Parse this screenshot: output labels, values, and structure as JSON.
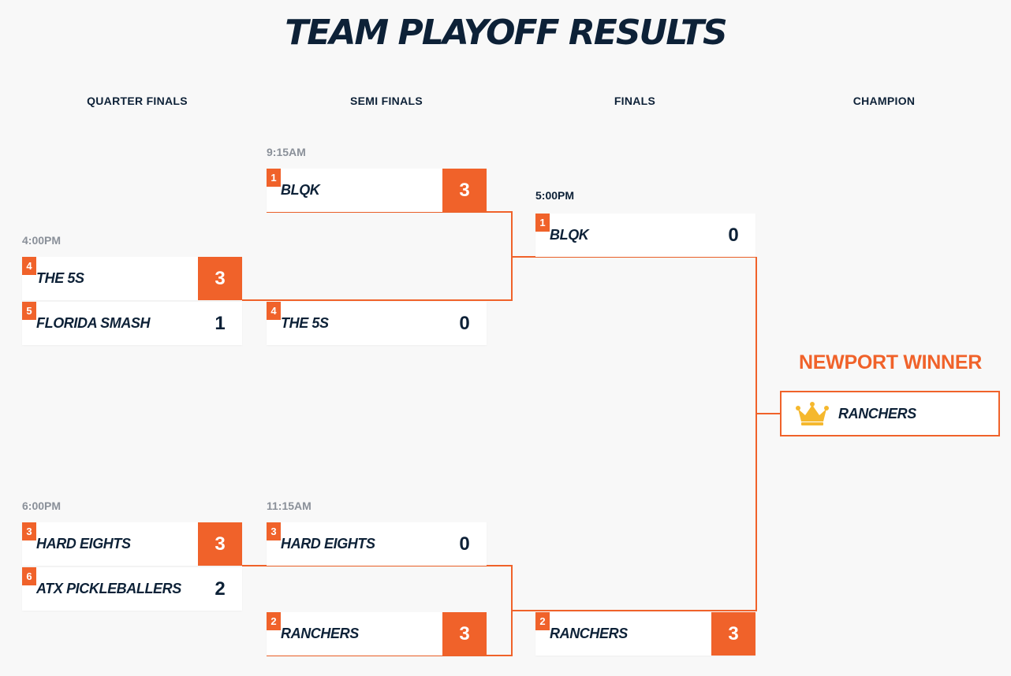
{
  "page": {
    "title": "TEAM PLAYOFF RESULTS"
  },
  "rounds": [
    "QUARTER FINALS",
    "SEMI FINALS",
    "FINALS",
    "CHAMPION"
  ],
  "quarter_finals": [
    {
      "time": "4:00PM",
      "teams": [
        {
          "seed": "4",
          "name": "THE 5S",
          "score": "3",
          "winner": true
        },
        {
          "seed": "5",
          "name": "FLORIDA SMASH",
          "score": "1",
          "winner": false
        }
      ]
    },
    {
      "time": "6:00PM",
      "teams": [
        {
          "seed": "3",
          "name": "HARD EIGHTS",
          "score": "3",
          "winner": true
        },
        {
          "seed": "6",
          "name": "ATX PICKLEBALLERS",
          "score": "2",
          "winner": false
        }
      ]
    }
  ],
  "semi_finals": [
    {
      "time": "9:15AM",
      "teams": [
        {
          "seed": "1",
          "name": "BLQK",
          "score": "3",
          "winner": true
        },
        {
          "seed": "4",
          "name": "THE 5S",
          "score": "0",
          "winner": false
        }
      ]
    },
    {
      "time": "11:15AM",
      "teams": [
        {
          "seed": "3",
          "name": "HARD EIGHTS",
          "score": "0",
          "winner": false
        },
        {
          "seed": "2",
          "name": "RANCHERS",
          "score": "3",
          "winner": true
        }
      ]
    }
  ],
  "finals": [
    {
      "time": "5:00PM",
      "teams": [
        {
          "seed": "1",
          "name": "BLQK",
          "score": "0",
          "winner": false
        },
        {
          "seed": "2",
          "name": "RANCHERS",
          "score": "3",
          "winner": true
        }
      ]
    }
  ],
  "champion": {
    "label": "NEWPORT WINNER",
    "name": "RANCHERS",
    "icon": "crown-icon"
  },
  "colors": {
    "accent": "#f0622a",
    "navy": "#0d2137",
    "muted": "#8a9099",
    "crown": "#f5b82e"
  }
}
